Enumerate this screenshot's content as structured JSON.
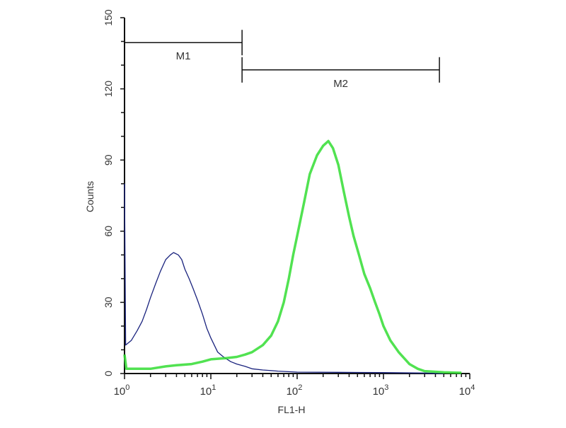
{
  "chart_data": {
    "type": "line",
    "title": "",
    "xlabel": "FL1-H",
    "ylabel": "Counts",
    "x_scale": "log",
    "xlim": [
      1,
      10000
    ],
    "ylim": [
      0,
      150
    ],
    "x_ticks": [
      {
        "value": 1,
        "base": "10",
        "exp": "0"
      },
      {
        "value": 10,
        "base": "10",
        "exp": "1"
      },
      {
        "value": 100,
        "base": "10",
        "exp": "2"
      },
      {
        "value": 1000,
        "base": "10",
        "exp": "3"
      },
      {
        "value": 10000,
        "base": "10",
        "exp": "4"
      }
    ],
    "y_ticks": [
      "0",
      "30",
      "60",
      "90",
      "120",
      "150"
    ],
    "grid": false,
    "markers": [
      {
        "label": "M1",
        "from": 1,
        "to": 23,
        "y": 139.5
      },
      {
        "label": "M2",
        "from": 23,
        "to": 4450,
        "y": 128
      }
    ],
    "series": [
      {
        "color": "#1a237e",
        "points": [
          [
            1,
            80
          ],
          [
            1.03,
            12
          ],
          [
            1.2,
            14
          ],
          [
            1.4,
            18
          ],
          [
            1.6,
            22
          ],
          [
            1.8,
            27
          ],
          [
            2,
            32
          ],
          [
            2.3,
            38
          ],
          [
            2.6,
            43
          ],
          [
            3,
            48
          ],
          [
            3.4,
            50
          ],
          [
            3.7,
            51
          ],
          [
            4.2,
            50
          ],
          [
            4.6,
            48
          ],
          [
            5,
            44
          ],
          [
            5.6,
            40
          ],
          [
            6.2,
            36
          ],
          [
            7,
            31
          ],
          [
            8,
            25
          ],
          [
            9,
            19
          ],
          [
            10,
            15
          ],
          [
            12,
            9
          ],
          [
            14,
            7
          ],
          [
            17,
            5
          ],
          [
            20,
            4
          ],
          [
            25,
            3
          ],
          [
            30,
            2
          ],
          [
            40,
            1.5
          ],
          [
            60,
            1
          ],
          [
            100,
            0.6
          ],
          [
            300,
            0.5
          ],
          [
            1000,
            0.4
          ],
          [
            3000,
            0.2
          ],
          [
            5000,
            0
          ]
        ]
      },
      {
        "color": "#33dd33",
        "points": [
          [
            1,
            8
          ],
          [
            1.05,
            2
          ],
          [
            1.5,
            2
          ],
          [
            2,
            2
          ],
          [
            3,
            3
          ],
          [
            4,
            3.5
          ],
          [
            6,
            4
          ],
          [
            8,
            5
          ],
          [
            10,
            6
          ],
          [
            15,
            6.5
          ],
          [
            20,
            7
          ],
          [
            25,
            8
          ],
          [
            30,
            9
          ],
          [
            40,
            12
          ],
          [
            50,
            16
          ],
          [
            60,
            22
          ],
          [
            70,
            30
          ],
          [
            80,
            40
          ],
          [
            90,
            50
          ],
          [
            100,
            58
          ],
          [
            120,
            72
          ],
          [
            140,
            84
          ],
          [
            170,
            92
          ],
          [
            200,
            96
          ],
          [
            230,
            98
          ],
          [
            260,
            95
          ],
          [
            300,
            88
          ],
          [
            350,
            76
          ],
          [
            400,
            66
          ],
          [
            450,
            58
          ],
          [
            520,
            50
          ],
          [
            600,
            42
          ],
          [
            700,
            36
          ],
          [
            800,
            30
          ],
          [
            900,
            25
          ],
          [
            1000,
            20
          ],
          [
            1200,
            14
          ],
          [
            1500,
            9
          ],
          [
            2000,
            4
          ],
          [
            2500,
            2
          ],
          [
            3000,
            1
          ],
          [
            5000,
            0.5
          ],
          [
            8000,
            0.3
          ]
        ]
      }
    ]
  }
}
